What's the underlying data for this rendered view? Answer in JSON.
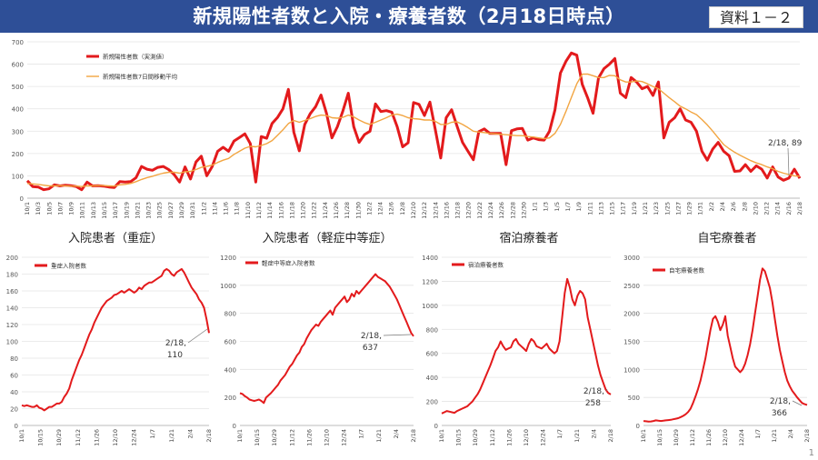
{
  "header": {
    "title": "新規陽性者数と入院・療養者数（2月18日時点）",
    "badge": "資料１－２",
    "header_color": "#2e4f97"
  },
  "page_number": "1",
  "colors": {
    "series_main": "#e31a1c",
    "series_avg": "#f2a541"
  },
  "chart_data": [
    {
      "id": "new-positive",
      "type": "line",
      "title": "",
      "ylim": [
        0,
        700
      ],
      "yticks": [
        0,
        100,
        200,
        300,
        400,
        500,
        600,
        700
      ],
      "x_tick_labels": [
        "10/1",
        "10/3",
        "10/5",
        "10/7",
        "10/9",
        "10/11",
        "10/13",
        "10/15",
        "10/17",
        "10/19",
        "10/21",
        "10/23",
        "10/25",
        "10/27",
        "10/29",
        "10/31",
        "11/2",
        "11/4",
        "11/6",
        "11/8",
        "11/10",
        "11/12",
        "11/14",
        "11/16",
        "11/18",
        "11/20",
        "11/22",
        "11/24",
        "11/26",
        "11/28",
        "11/30",
        "12/2",
        "12/4",
        "12/6",
        "12/8",
        "12/10",
        "12/12",
        "12/14",
        "12/16",
        "12/18",
        "12/20",
        "12/22",
        "12/24",
        "12/26",
        "12/28",
        "12/30",
        "1/1",
        "1/3",
        "1/5",
        "1/7",
        "1/9",
        "1/11",
        "1/13",
        "1/15",
        "1/17",
        "1/19",
        "1/21",
        "1/23",
        "1/25",
        "1/27",
        "1/29",
        "1/31",
        "2/2",
        "2/4",
        "2/6",
        "2/8",
        "2/10",
        "2/12",
        "2/14",
        "2/16",
        "2/18"
      ],
      "legend": [
        "新規陽性者数（実測値）",
        "新規陽性者数7日間移動平均"
      ],
      "annotation": "2/18, 89",
      "series": [
        {
          "name": "新規陽性者数（実測値）",
          "values": [
            78,
            52,
            50,
            38,
            42,
            60,
            55,
            58,
            56,
            52,
            38,
            72,
            55,
            56,
            54,
            50,
            48,
            74,
            72,
            74,
            92,
            142,
            130,
            125,
            138,
            142,
            128,
            106,
            72,
            140,
            86,
            162,
            188,
            100,
            142,
            210,
            228,
            210,
            256,
            272,
            288,
            244,
            72,
            276,
            268,
            335,
            362,
            400,
            487,
            295,
            212,
            330,
            378,
            410,
            462,
            380,
            270,
            320,
            390,
            470,
            320,
            250,
            285,
            300,
            422,
            388,
            392,
            385,
            320,
            230,
            248,
            428,
            420,
            370,
            430,
            308,
            180,
            360,
            396,
            322,
            250,
            210,
            172,
            298,
            310,
            290,
            290,
            290,
            150,
            302,
            310,
            312,
            260,
            270,
            262,
            260,
            300,
            395,
            560,
            612,
            650,
            640,
            510,
            450,
            380,
            538,
            580,
            600,
            625,
            470,
            450,
            540,
            520,
            490,
            500,
            460,
            520,
            270,
            340,
            360,
            400,
            350,
            340,
            300,
            210,
            170,
            220,
            250,
            210,
            190,
            120,
            122,
            150,
            120,
            145,
            130,
            90,
            140,
            95,
            80,
            90,
            130,
            89
          ]
        },
        {
          "name": "新規陽性者数7日間移動平均",
          "values": [
            66,
            64,
            62,
            58,
            55,
            55,
            56,
            55,
            54,
            54,
            52,
            55,
            55,
            56,
            56,
            55,
            54,
            60,
            62,
            66,
            74,
            84,
            92,
            98,
            106,
            112,
            116,
            116,
            112,
            118,
            120,
            128,
            138,
            142,
            148,
            160,
            170,
            178,
            196,
            210,
            224,
            232,
            230,
            236,
            244,
            258,
            282,
            306,
            334,
            348,
            340,
            348,
            356,
            366,
            372,
            370,
            360,
            358,
            362,
            372,
            364,
            350,
            338,
            330,
            340,
            350,
            360,
            372,
            376,
            370,
            360,
            356,
            354,
            350,
            350,
            344,
            330,
            330,
            340,
            342,
            330,
            316,
            300,
            296,
            294,
            290,
            288,
            286,
            284,
            282,
            280,
            280,
            276,
            274,
            270,
            266,
            270,
            290,
            330,
            388,
            450,
            512,
            555,
            556,
            548,
            540,
            540,
            550,
            548,
            530,
            520,
            520,
            525,
            522,
            512,
            500,
            490,
            470,
            450,
            432,
            412,
            400,
            386,
            374,
            352,
            328,
            300,
            270,
            240,
            222,
            206,
            192,
            180,
            168,
            158,
            150,
            140,
            132,
            120,
            112,
            106,
            100,
            98
          ]
        }
      ]
    },
    {
      "id": "hospitalized-severe",
      "type": "line",
      "title": "入院患者（重症）",
      "ylim": [
        0,
        200
      ],
      "yticks": [
        0,
        20,
        40,
        60,
        80,
        100,
        120,
        140,
        160,
        180,
        200
      ],
      "x_tick_labels": [
        "10/1",
        "10/15",
        "10/29",
        "11/12",
        "11/26",
        "12/10",
        "12/24",
        "1/7",
        "1/21",
        "2/4",
        "2/18"
      ],
      "legend": [
        "重症入院者数"
      ],
      "annotation": "2/18, 110",
      "series": [
        {
          "name": "重症入院者数",
          "values": [
            24,
            23,
            24,
            23,
            22,
            22,
            24,
            21,
            20,
            18,
            20,
            22,
            22,
            24,
            26,
            26,
            28,
            34,
            38,
            44,
            54,
            62,
            70,
            78,
            84,
            92,
            100,
            108,
            114,
            122,
            128,
            134,
            140,
            144,
            148,
            150,
            152,
            155,
            156,
            158,
            160,
            158,
            160,
            162,
            160,
            158,
            160,
            164,
            162,
            166,
            168,
            170,
            170,
            172,
            174,
            176,
            178,
            184,
            186,
            184,
            180,
            178,
            182,
            184,
            186,
            182,
            176,
            170,
            164,
            160,
            156,
            150,
            146,
            140,
            126,
            110
          ]
        }
      ]
    },
    {
      "id": "hospitalized-moderate",
      "type": "line",
      "title": "入院患者（軽症中等症）",
      "ylim": [
        0,
        1200
      ],
      "yticks": [
        0,
        200,
        400,
        600,
        800,
        1000,
        1200
      ],
      "x_tick_labels": [
        "10/1",
        "10/15",
        "10/29",
        "11/12",
        "11/26",
        "12/10",
        "12/24",
        "1/7",
        "1/21",
        "2/4",
        "2/18"
      ],
      "legend": [
        "軽症中等症入院者数"
      ],
      "annotation": "2/18, 637",
      "series": [
        {
          "name": "軽症中等症入院者数",
          "values": [
            230,
            225,
            210,
            200,
            185,
            180,
            175,
            180,
            185,
            175,
            160,
            200,
            215,
            230,
            250,
            270,
            290,
            320,
            340,
            360,
            390,
            420,
            440,
            470,
            500,
            520,
            560,
            580,
            620,
            650,
            680,
            700,
            720,
            710,
            740,
            760,
            780,
            800,
            820,
            790,
            840,
            860,
            880,
            900,
            920,
            880,
            900,
            940,
            920,
            960,
            940,
            960,
            980,
            1000,
            1020,
            1040,
            1060,
            1080,
            1060,
            1050,
            1040,
            1030,
            1010,
            990,
            960,
            930,
            900,
            860,
            820,
            780,
            740,
            700,
            660,
            637
          ]
        }
      ]
    },
    {
      "id": "hotel-recuperation",
      "type": "line",
      "title": "宿泊療養者",
      "ylim": [
        0,
        1400
      ],
      "yticks": [
        0,
        200,
        400,
        600,
        800,
        1000,
        1200,
        1400
      ],
      "x_tick_labels": [
        "10/1",
        "10/15",
        "10/29",
        "11/12",
        "11/26",
        "12/10",
        "12/24",
        "1/7",
        "1/21",
        "2/4",
        "2/18"
      ],
      "legend": [
        "宿泊療養者数"
      ],
      "annotation": "2/18, 258",
      "series": [
        {
          "name": "宿泊療養者数",
          "values": [
            100,
            110,
            120,
            115,
            110,
            105,
            120,
            130,
            140,
            150,
            160,
            180,
            200,
            230,
            260,
            300,
            350,
            400,
            450,
            500,
            560,
            620,
            650,
            700,
            660,
            630,
            640,
            650,
            700,
            720,
            680,
            660,
            640,
            620,
            680,
            720,
            700,
            660,
            650,
            640,
            660,
            680,
            640,
            620,
            600,
            620,
            700,
            900,
            1100,
            1220,
            1150,
            1050,
            1000,
            1080,
            1120,
            1100,
            1050,
            900,
            800,
            700,
            600,
            500,
            420,
            360,
            300,
            270,
            258
          ]
        }
      ]
    },
    {
      "id": "home-recuperation",
      "type": "line",
      "title": "自宅療養者",
      "ylim": [
        0,
        3000
      ],
      "yticks": [
        0,
        500,
        1000,
        1500,
        2000,
        2500,
        3000
      ],
      "x_tick_labels": [
        "10/1",
        "10/15",
        "10/29",
        "11/12",
        "11/26",
        "12/10",
        "12/24",
        "1/7",
        "1/21",
        "2/4",
        "2/18"
      ],
      "legend": [
        "自宅療養者数"
      ],
      "annotation": "2/18, 366",
      "series": [
        {
          "name": "自宅療養者数",
          "values": [
            80,
            75,
            70,
            72,
            80,
            90,
            85,
            80,
            85,
            90,
            95,
            100,
            110,
            120,
            130,
            150,
            170,
            200,
            240,
            300,
            400,
            520,
            650,
            800,
            1000,
            1200,
            1450,
            1700,
            1900,
            1950,
            1850,
            1700,
            1800,
            1950,
            1600,
            1400,
            1200,
            1050,
            1000,
            950,
            1000,
            1100,
            1250,
            1450,
            1700,
            2000,
            2300,
            2600,
            2800,
            2750,
            2600,
            2450,
            2200,
            1900,
            1600,
            1350,
            1150,
            950,
            800,
            700,
            620,
            560,
            500,
            450,
            400,
            380,
            366
          ]
        }
      ]
    }
  ]
}
